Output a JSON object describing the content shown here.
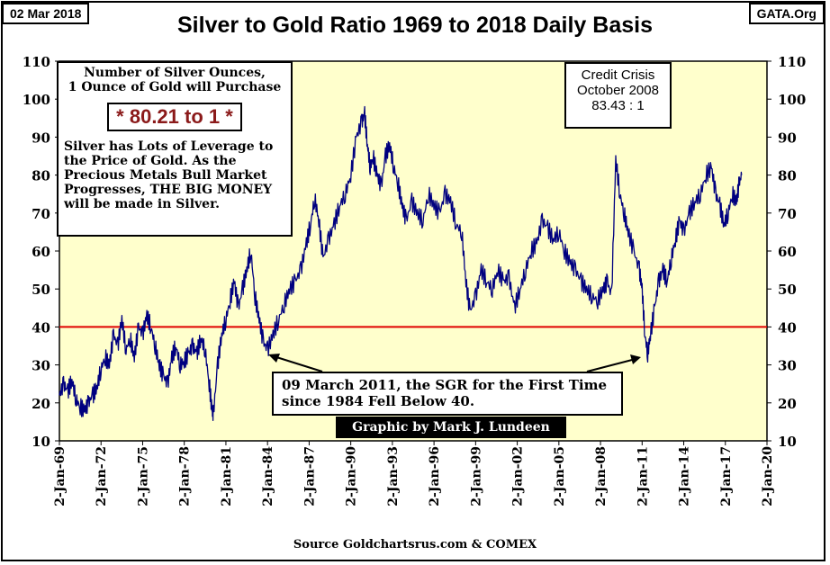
{
  "date_tag": "02 Mar 2018",
  "site_tag": "GATA.Org",
  "info_box": {
    "heading_line1": "Number of Silver Ounces,",
    "heading_line2": "1 Ounce of Gold will Purchase",
    "ratio": "* 80.21 to 1 *",
    "body_lines": [
      "Silver has Lots of Leverage to",
      "the Price of Gold.  As the",
      "Precious Metals Bull Market",
      "Progresses,  THE BIG MONEY",
      "will be made in Silver."
    ]
  },
  "crisis_box": {
    "line1": "Credit Crisis",
    "line2": "October 2008",
    "line3": "83.43 : 1"
  },
  "annotation": {
    "line1": "09 March  2011, the SGR for the First Time",
    "line2": "since 1984 Fell Below 40."
  },
  "credit_badge": "Graphic by Mark J. Lundeen",
  "source_text": "Source Goldchartsrus.com & COMEX",
  "colors": {
    "plot_bg": "#ffffcc",
    "series": "#00007f",
    "reference_line": "#e00000",
    "badge_bg": "#000000",
    "badge_text": "#ffffff",
    "ratio_text": "#8b1a1a"
  },
  "chart_data": {
    "type": "line",
    "title": "Silver to Gold Ratio 1969 to 2018 Daily Basis",
    "xlabel": "",
    "ylabel": "",
    "x_range": [
      1969.0,
      2020.0
    ],
    "ylim": [
      10,
      110
    ],
    "y_ticks": [
      10,
      20,
      30,
      40,
      50,
      60,
      70,
      80,
      90,
      100,
      110
    ],
    "x_tick_years": [
      1969,
      1972,
      1975,
      1978,
      1981,
      1984,
      1987,
      1990,
      1993,
      1996,
      1999,
      2002,
      2005,
      2008,
      2011,
      2014,
      2017,
      2020
    ],
    "x_tick_labels": [
      "2-Jan-69",
      "2-Jan-72",
      "2-Jan-75",
      "2-Jan-78",
      "2-Jan-81",
      "2-Jan-84",
      "2-Jan-87",
      "2-Jan-90",
      "2-Jan-93",
      "2-Jan-96",
      "2-Jan-99",
      "2-Jan-02",
      "2-Jan-05",
      "2-Jan-08",
      "2-Jan-11",
      "2-Jan-14",
      "2-Jan-17",
      "2-Jan-20"
    ],
    "reference_line": 40,
    "grid": false,
    "series": [
      {
        "x": [
          1969.0,
          1969.3,
          1969.6,
          1969.9,
          1970.2,
          1970.5,
          1970.8,
          1971.1,
          1971.4,
          1971.7,
          1972.0,
          1972.3,
          1972.6,
          1972.9,
          1973.2,
          1973.5,
          1973.8,
          1974.1,
          1974.4,
          1974.7,
          1975.0,
          1975.3,
          1975.6,
          1975.9,
          1976.2,
          1976.5,
          1976.8,
          1977.1,
          1977.4,
          1977.7,
          1978.0,
          1978.3,
          1978.6,
          1978.9,
          1979.2,
          1979.5,
          1979.8,
          1980.0,
          1980.1,
          1980.4,
          1980.7,
          1981.0,
          1981.3,
          1981.6,
          1981.9,
          1982.2,
          1982.5,
          1982.8,
          1983.1,
          1983.4,
          1983.7,
          1984.0,
          1984.4,
          1984.8,
          1985.2,
          1985.6,
          1986.0,
          1986.4,
          1986.8,
          1987.1,
          1987.4,
          1987.7,
          1988.0,
          1988.4,
          1988.8,
          1989.2,
          1989.6,
          1990.0,
          1990.4,
          1990.8,
          1991.0,
          1991.2,
          1991.4,
          1991.6,
          1991.9,
          1992.2,
          1992.5,
          1992.8,
          1993.1,
          1993.4,
          1993.7,
          1994.0,
          1994.4,
          1994.8,
          1995.2,
          1995.6,
          1996.0,
          1996.4,
          1996.8,
          1997.2,
          1997.6,
          1998.0,
          1998.3,
          1998.6,
          1999.0,
          1999.4,
          1999.8,
          2000.2,
          2000.6,
          2001.0,
          2001.4,
          2001.8,
          2002.2,
          2002.6,
          2003.0,
          2003.4,
          2003.8,
          2004.2,
          2004.6,
          2005.0,
          2005.4,
          2005.8,
          2006.2,
          2006.6,
          2007.0,
          2007.4,
          2007.8,
          2008.2,
          2008.5,
          2008.8,
          2009.1,
          2009.4,
          2009.7,
          2010.0,
          2010.4,
          2010.8,
          2011.0,
          2011.2,
          2011.4,
          2011.6,
          2011.9,
          2012.2,
          2012.5,
          2012.8,
          2013.1,
          2013.4,
          2013.7,
          2014.0,
          2014.4,
          2014.8,
          2015.2,
          2015.6,
          2016.0,
          2016.3,
          2016.6,
          2016.9,
          2017.2,
          2017.5,
          2017.8,
          2018.0,
          2018.17
        ],
        "values": [
          22,
          25,
          23,
          26,
          21,
          19,
          18,
          20,
          22,
          24,
          29,
          32,
          30,
          38,
          35,
          42,
          34,
          37,
          32,
          40,
          38,
          43,
          40,
          35,
          30,
          27,
          25,
          32,
          35,
          30,
          31,
          33,
          35,
          33,
          37,
          34,
          25,
          18,
          17,
          30,
          38,
          42,
          47,
          52,
          45,
          50,
          55,
          60,
          48,
          42,
          36,
          34,
          38,
          42,
          46,
          50,
          52,
          55,
          62,
          67,
          74,
          68,
          58,
          63,
          67,
          72,
          75,
          80,
          90,
          94,
          96,
          88,
          82,
          85,
          80,
          77,
          85,
          88,
          82,
          78,
          72,
          68,
          73,
          70,
          68,
          75,
          72,
          70,
          75,
          73,
          67,
          65,
          52,
          44,
          48,
          55,
          52,
          50,
          55,
          52,
          53,
          45,
          50,
          55,
          60,
          62,
          68,
          66,
          63,
          65,
          60,
          57,
          55,
          52,
          50,
          48,
          47,
          50,
          52,
          48,
          84,
          75,
          70,
          65,
          60,
          55,
          50,
          38,
          33,
          38,
          45,
          52,
          55,
          52,
          58,
          63,
          68,
          65,
          70,
          73,
          75,
          80,
          82,
          75,
          72,
          67,
          70,
          75,
          73,
          78,
          80
        ]
      }
    ]
  }
}
